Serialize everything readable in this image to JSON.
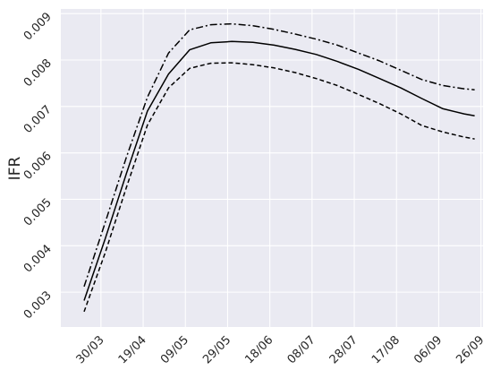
{
  "chart_data": {
    "type": "line",
    "title": "",
    "xlabel": "",
    "ylabel": "IFR",
    "grid": true,
    "legend": "none",
    "colors": {
      "background": "#eaeaf2",
      "grid": "#ffffff",
      "line": "#000000"
    },
    "x_ticks": [
      "30/03",
      "19/04",
      "09/05",
      "29/05",
      "18/06",
      "08/07",
      "28/07",
      "17/08",
      "06/09",
      "26/09"
    ],
    "x_range": [
      "2020-03-11",
      "2020-09-27"
    ],
    "y_ticks": [
      "0.003",
      "0.004",
      "0.005",
      "0.006",
      "0.007",
      "0.008",
      "0.009"
    ],
    "ylim": [
      0.00225,
      0.0091
    ],
    "x": [
      "2020-03-22",
      "2020-04-01",
      "2020-04-11",
      "2020-04-21",
      "2020-05-01",
      "2020-05-11",
      "2020-05-21",
      "2020-05-31",
      "2020-06-10",
      "2020-06-20",
      "2020-06-30",
      "2020-07-10",
      "2020-07-20",
      "2020-07-30",
      "2020-08-09",
      "2020-08-19",
      "2020-08-29",
      "2020-09-08",
      "2020-09-18",
      "2020-09-23"
    ],
    "series": [
      {
        "style": "dashdot",
        "values": [
          0.00312,
          0.0045,
          0.0059,
          0.0072,
          0.00815,
          0.00865,
          0.00876,
          0.00878,
          0.00874,
          0.00866,
          0.00856,
          0.00845,
          0.00832,
          0.00815,
          0.00798,
          0.00778,
          0.00758,
          0.00745,
          0.00738,
          0.00736
        ]
      },
      {
        "style": "solid",
        "values": [
          0.00282,
          0.00415,
          0.00555,
          0.0069,
          0.0077,
          0.00822,
          0.00837,
          0.0084,
          0.00838,
          0.00832,
          0.00823,
          0.00812,
          0.00797,
          0.0078,
          0.0076,
          0.0074,
          0.00717,
          0.00695,
          0.00684,
          0.0068
        ]
      },
      {
        "style": "dashed",
        "values": [
          0.00258,
          0.00385,
          0.00525,
          0.0066,
          0.0074,
          0.00782,
          0.00793,
          0.00794,
          0.0079,
          0.00783,
          0.00773,
          0.0076,
          0.00745,
          0.00726,
          0.00706,
          0.00684,
          0.00659,
          0.00645,
          0.00634,
          0.0063
        ]
      }
    ]
  }
}
